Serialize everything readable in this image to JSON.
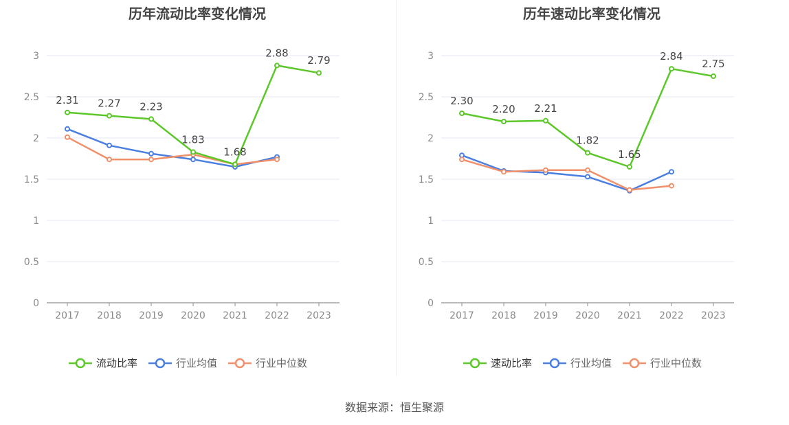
{
  "source": "数据来源：恒生聚源",
  "colors": {
    "green": "#5cc729",
    "blue": "#4a7ee0",
    "orange": "#f0906a",
    "grid": "#e4e7f2",
    "axis": "#8f8f8f",
    "tick": "#8a8a8a",
    "label": "#444444"
  },
  "chart_data": [
    {
      "type": "line",
      "title": "历年流动比率变化情况",
      "xlabel": "",
      "ylabel": "",
      "categories": [
        "2017",
        "2018",
        "2019",
        "2020",
        "2021",
        "2022",
        "2023"
      ],
      "ylim": [
        0,
        3
      ],
      "yticks": [
        "0",
        "0.5",
        "1",
        "1.5",
        "2",
        "2.5",
        "3"
      ],
      "grid": true,
      "legend_position": "bottom",
      "series": [
        {
          "name": "流动比率",
          "color": "#5cc729",
          "values": [
            2.31,
            2.27,
            2.23,
            1.83,
            1.68,
            2.88,
            2.79
          ],
          "labels": [
            "2.31",
            "2.27",
            "2.23",
            "1.83",
            "1.68",
            "2.88",
            "2.79"
          ]
        },
        {
          "name": "行业均值",
          "color": "#4a7ee0",
          "values": [
            2.11,
            1.91,
            1.81,
            1.74,
            1.65,
            1.77,
            null
          ]
        },
        {
          "name": "行业中位数",
          "color": "#f0906a",
          "values": [
            2.01,
            1.74,
            1.74,
            1.8,
            1.68,
            1.74,
            null
          ]
        }
      ]
    },
    {
      "type": "line",
      "title": "历年速动比率变化情况",
      "xlabel": "",
      "ylabel": "",
      "categories": [
        "2017",
        "2018",
        "2019",
        "2020",
        "2021",
        "2022",
        "2023"
      ],
      "ylim": [
        0,
        3
      ],
      "yticks": [
        "0",
        "0.5",
        "1",
        "1.5",
        "2",
        "2.5",
        "3"
      ],
      "grid": true,
      "legend_position": "bottom",
      "series": [
        {
          "name": "速动比率",
          "color": "#5cc729",
          "values": [
            2.3,
            2.2,
            2.21,
            1.82,
            1.65,
            2.84,
            2.75
          ],
          "labels": [
            "2.30",
            "2.20",
            "2.21",
            "1.82",
            "1.65",
            "2.84",
            "2.75"
          ]
        },
        {
          "name": "行业均值",
          "color": "#4a7ee0",
          "values": [
            1.79,
            1.6,
            1.58,
            1.53,
            1.36,
            1.59,
            null
          ]
        },
        {
          "name": "行业中位数",
          "color": "#f0906a",
          "values": [
            1.74,
            1.59,
            1.61,
            1.61,
            1.37,
            1.42,
            null
          ]
        }
      ]
    }
  ]
}
